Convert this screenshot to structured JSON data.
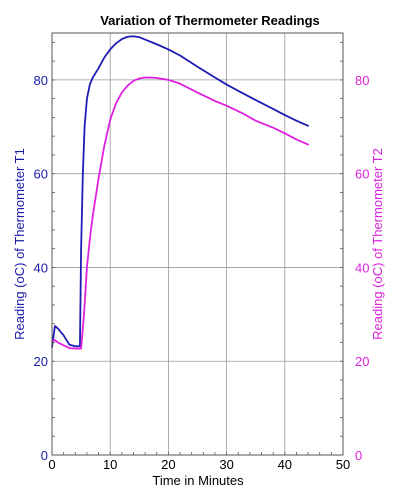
{
  "chart_data": {
    "type": "line",
    "title": "Variation of Thermometer Readings",
    "xlabel": "Time in Minutes",
    "ylabel_left": "Reading (oC) of Thermometer T1",
    "ylabel_right": "Reading (oC) of Thermometer T2",
    "xlim": [
      0,
      50
    ],
    "ylim": [
      0,
      90
    ],
    "x_ticks": [
      0,
      10,
      20,
      30,
      40,
      50
    ],
    "y_ticks": [
      0,
      20,
      40,
      60,
      80
    ],
    "grid": true,
    "colors": {
      "left_axis": "#1a1aaa",
      "right_axis": "#dd22dd",
      "grid": "#9a9a9a"
    },
    "series": [
      {
        "axis": "left",
        "color": "#1c1cb4",
        "x": [
          0,
          0.5,
          1,
          2,
          3,
          4,
          4.8,
          5.0,
          5.3,
          5.6,
          6,
          6.5,
          7,
          8,
          9,
          10,
          11,
          12,
          13,
          14,
          15,
          16,
          18,
          20,
          22,
          25,
          28,
          30,
          33,
          35,
          38,
          40,
          42,
          44
        ],
        "y": [
          23,
          27.5,
          27,
          25.5,
          23.5,
          23.2,
          23.2,
          44,
          60,
          70,
          76,
          79,
          80.5,
          82.5,
          84.8,
          86.5,
          87.8,
          88.7,
          89.2,
          89.3,
          89.1,
          88.6,
          87.6,
          86.5,
          85.2,
          82.8,
          80.5,
          79,
          77,
          75.7,
          73.8,
          72.5,
          71.3,
          70.2
        ]
      },
      {
        "axis": "right",
        "color": "#e020e0",
        "x": [
          0,
          0.5,
          1,
          2,
          3,
          4,
          5.0,
          5.5,
          6,
          6.5,
          7,
          7.5,
          8,
          9,
          10,
          11,
          12,
          13,
          14,
          15,
          16,
          17,
          18,
          19,
          20,
          22,
          25,
          28,
          30,
          33,
          35,
          38,
          40,
          42,
          44
        ],
        "y": [
          24.3,
          24.5,
          24,
          23.4,
          22.8,
          22.7,
          22.7,
          30,
          40,
          46,
          51,
          55,
          59,
          66,
          71.5,
          75,
          77.3,
          78.8,
          79.8,
          80.3,
          80.5,
          80.5,
          80.4,
          80.2,
          80,
          79.2,
          77.3,
          75.5,
          74.5,
          72.7,
          71.3,
          69.8,
          68.6,
          67.3,
          66.2
        ]
      }
    ]
  }
}
